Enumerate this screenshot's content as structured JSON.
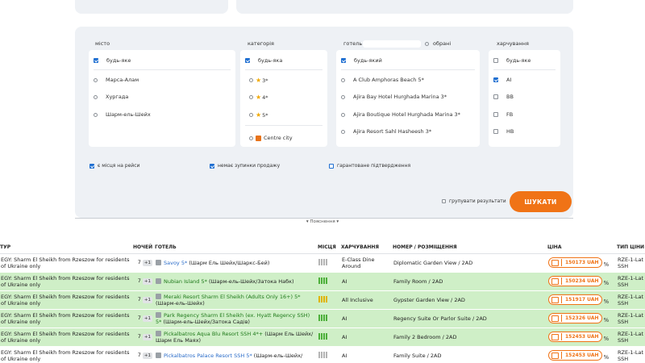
{
  "filters": {
    "city": {
      "label": "місто",
      "any": "будь-яке",
      "options": [
        "Марса-Алам",
        "Хургада",
        "Шарм-ель-Шейх"
      ]
    },
    "category": {
      "label": "категорія",
      "any": "будь-яка",
      "options": [
        "3*",
        "4*",
        "5*"
      ],
      "extra": "Centre city"
    },
    "hotel": {
      "label": "готель",
      "favorites_label": "обрані",
      "any": "будь-який",
      "options": [
        "A Club Amphoras Beach 5*",
        "Ajira Bay Hotel Hurghada Marina 3*",
        "Ajira Boutique Hotel Hurghada Marina 3*",
        "Ajira Resort Sahl Hasheesh 3*"
      ]
    },
    "meal": {
      "label": "харчування",
      "any": "будь-яке",
      "options": [
        "AI",
        "BB",
        "FB",
        "HB"
      ]
    }
  },
  "flags": {
    "seats_on_flights": "є місця на рейси",
    "no_stop_sale": "немає зупинки продажу",
    "guaranteed": "гарантоване підтвердження",
    "group_results": "групувати результати"
  },
  "search_button": "ШУКАТИ",
  "hint": "▾ Пояснення ▾",
  "table": {
    "headers": {
      "tour": "ТУР",
      "nights": "НОЧЕЙ",
      "hotel": "ГОТЕЛЬ",
      "seats": "МІСЦЯ",
      "meal": "ХАРЧУВАННЯ",
      "room": "НОМЕР / РОЗМІЩЕННЯ",
      "price": "ЦІНА",
      "price_type": "ТИП ЦІНИ"
    },
    "rows": [
      {
        "tour": "EGY: Sharm El Sheikh from Rzeszow for residents of Ukraine only",
        "nights": "7",
        "plus": "+1",
        "hotel": "Savoy 5*",
        "location": "(Шарм Ель Шейх/Шаркс-Бей)",
        "meal": "E-Class Dine Around",
        "room": "Diplomatic Garden View / 2AD",
        "price": "150173 UAH",
        "pct": "%",
        "ptype": "RZE-1-Lat SSH"
      },
      {
        "tour": "EGY: Sharm El Sheikh from Rzeszow for residents of Ukraine only",
        "nights": "7",
        "plus": "+1",
        "hotel": "Nubian Island 5*",
        "location": "(Шарм-ель-Шейх/Затока Набк)",
        "meal": "AI",
        "room": "Family Room / 2AD",
        "price": "150234 UAH",
        "pct": "%",
        "ptype": "RZE-1-Lat SSH"
      },
      {
        "tour": "EGY: Sharm El Sheikh from Rzeszow for residents of Ukraine only",
        "nights": "7",
        "plus": "+1",
        "hotel": "Meraki Resort Sharm El Sheikh (Adults Only 16+) 5*",
        "location": "(Шарм-ель-Шейх)",
        "meal": "All Inclusive",
        "room": "Gypster Garden View / 2AD",
        "price": "151917 UAH",
        "pct": "%",
        "ptype": "RZE-1-Lat SSH"
      },
      {
        "tour": "EGY: Sharm El Sheikh from Rzeszow for residents of Ukraine only",
        "nights": "7",
        "plus": "+1",
        "hotel": "Park Regency Sharm El Sheikh (ex. Hyatt Regency SSH) 5*",
        "location": "(Шарм-ель-Шейх/Затока Садів)",
        "meal": "AI",
        "room": "Regency Suite Or Parlor Suite / 2AD",
        "price": "152326 UAH",
        "pct": "%",
        "ptype": "RZE-1-Lat SSH"
      },
      {
        "tour": "EGY: Sharm El Sheikh from Rzeszow for residents of Ukraine only",
        "nights": "7",
        "plus": "+1",
        "hotel": "Pickalbatros Aqua Blu Resort SSH 4*+",
        "location": "(Шарм Ель Шейх/Шарм Ель Маях)",
        "meal": "AI",
        "room": "Family 2 Bedroom / 2AD",
        "price": "152453 UAH",
        "pct": "%",
        "ptype": "RZE-1-Lat SSH"
      },
      {
        "tour": "EGY: Sharm El Sheikh from Rzeszow for residents of Ukraine only",
        "nights": "7",
        "plus": "+1",
        "hotel": "Pickalbatros Palace Resort SSH 5*",
        "location": "(Шарм-ель-Шейх/",
        "meal": "AI",
        "room": "Family Suite / 2AD",
        "price": "152453 UAH",
        "pct": "%",
        "ptype": "RZE-1-Lat SSH"
      }
    ]
  }
}
